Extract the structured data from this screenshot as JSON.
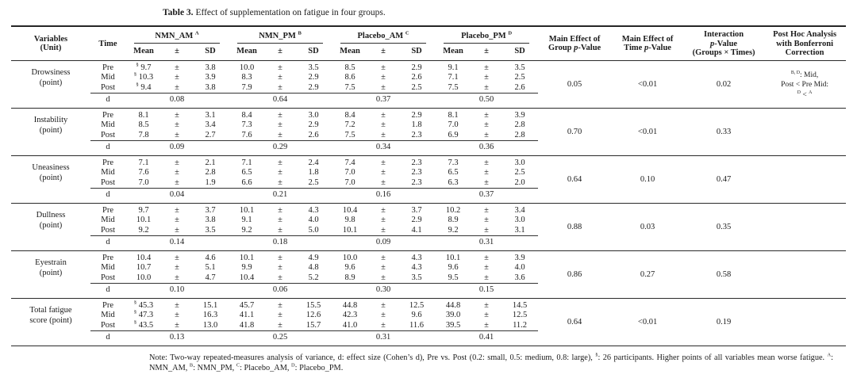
{
  "caption": {
    "label": "Table 3.",
    "text": " Effect of supplementation on fatigue in four groups."
  },
  "plus_minus": "±",
  "table": {
    "headers": {
      "variables": "Variables\n(Unit)",
      "time": "Time",
      "groups": [
        "NMN_AM ^A^",
        "NMN_PM ^B^",
        "Placebo_AM ^C^",
        "Placebo_PM ^D^"
      ],
      "sub": [
        "Mean",
        "±",
        "SD"
      ],
      "stats": [
        "Main Effect of\nGroup *p*-Value",
        "Main Effect of\nTime *p*-Value",
        "Interaction\n*p*-Value\n(Groups × Times)",
        "Post Hoc Analysis\nwith Bonferroni\nCorrection"
      ]
    },
    "d_label": "d",
    "blocks": [
      {
        "variable": "Drowsiness\n(point)",
        "rows": [
          {
            "time": "Pre",
            "values": [
              [
                "^§^ 9.7",
                "3.8"
              ],
              [
                "10.0",
                "3.5"
              ],
              [
                "8.5",
                "2.9"
              ],
              [
                "9.1",
                "3.5"
              ]
            ]
          },
          {
            "time": "Mid",
            "values": [
              [
                "^§^ 10.3",
                "3.9"
              ],
              [
                "8.3",
                "2.9"
              ],
              [
                "8.6",
                "2.6"
              ],
              [
                "7.1",
                "2.5"
              ]
            ]
          },
          {
            "time": "Post",
            "values": [
              [
                "^§^ 9.4",
                "3.8"
              ],
              [
                "7.9",
                "2.9"
              ],
              [
                "7.5",
                "2.5"
              ],
              [
                "7.5",
                "2.6"
              ]
            ]
          }
        ],
        "d": [
          "0.08",
          "0.64",
          "0.37",
          "0.50"
        ],
        "p": [
          "0.05",
          "<0.01",
          "0.02"
        ],
        "post_hoc": "^B, D^: Mid,\nPost < Pre Mid:\n^D^ < ^A^"
      },
      {
        "variable": "Instability\n(point)",
        "rows": [
          {
            "time": "Pre",
            "values": [
              [
                "8.1",
                "3.1"
              ],
              [
                "8.4",
                "3.0"
              ],
              [
                "8.4",
                "2.9"
              ],
              [
                "8.1",
                "3.9"
              ]
            ]
          },
          {
            "time": "Mid",
            "values": [
              [
                "8.5",
                "3.4"
              ],
              [
                "7.3",
                "2.9"
              ],
              [
                "7.2",
                "1.8"
              ],
              [
                "7.0",
                "2.8"
              ]
            ]
          },
          {
            "time": "Post",
            "values": [
              [
                "7.8",
                "2.7"
              ],
              [
                "7.6",
                "2.6"
              ],
              [
                "7.5",
                "2.3"
              ],
              [
                "6.9",
                "2.8"
              ]
            ]
          }
        ],
        "d": [
          "0.09",
          "0.29",
          "0.34",
          "0.36"
        ],
        "p": [
          "0.70",
          "<0.01",
          "0.33"
        ],
        "post_hoc": ""
      },
      {
        "variable": "Uneasiness\n(point)",
        "rows": [
          {
            "time": "Pre",
            "values": [
              [
                "7.1",
                "2.1"
              ],
              [
                "7.1",
                "2.4"
              ],
              [
                "7.4",
                "2.3"
              ],
              [
                "7.3",
                "3.0"
              ]
            ]
          },
          {
            "time": "Mid",
            "values": [
              [
                "7.6",
                "2.8"
              ],
              [
                "6.5",
                "1.8"
              ],
              [
                "7.0",
                "2.3"
              ],
              [
                "6.5",
                "2.5"
              ]
            ]
          },
          {
            "time": "Post",
            "values": [
              [
                "7.0",
                "1.9"
              ],
              [
                "6.6",
                "2.5"
              ],
              [
                "7.0",
                "2.3"
              ],
              [
                "6.3",
                "2.0"
              ]
            ]
          }
        ],
        "d": [
          "0.04",
          "0.21",
          "0.16",
          "0.37"
        ],
        "p": [
          "0.64",
          "0.10",
          "0.47"
        ],
        "post_hoc": ""
      },
      {
        "variable": "Dullness\n(point)",
        "rows": [
          {
            "time": "Pre",
            "values": [
              [
                "9.7",
                "3.7"
              ],
              [
                "10.1",
                "4.3"
              ],
              [
                "10.4",
                "3.7"
              ],
              [
                "10.2",
                "3.4"
              ]
            ]
          },
          {
            "time": "Mid",
            "values": [
              [
                "10.1",
                "3.8"
              ],
              [
                "9.1",
                "4.0"
              ],
              [
                "9.8",
                "2.9"
              ],
              [
                "8.9",
                "3.0"
              ]
            ]
          },
          {
            "time": "Post",
            "values": [
              [
                "9.2",
                "3.5"
              ],
              [
                "9.2",
                "5.0"
              ],
              [
                "10.1",
                "4.1"
              ],
              [
                "9.2",
                "3.1"
              ]
            ]
          }
        ],
        "d": [
          "0.14",
          "0.18",
          "0.09",
          "0.31"
        ],
        "p": [
          "0.88",
          "0.03",
          "0.35"
        ],
        "post_hoc": ""
      },
      {
        "variable": "Eyestrain\n(point)",
        "rows": [
          {
            "time": "Pre",
            "values": [
              [
                "10.4",
                "4.6"
              ],
              [
                "10.1",
                "4.9"
              ],
              [
                "10.0",
                "4.3"
              ],
              [
                "10.1",
                "3.9"
              ]
            ]
          },
          {
            "time": "Mid",
            "values": [
              [
                "10.7",
                "5.1"
              ],
              [
                "9.9",
                "4.8"
              ],
              [
                "9.6",
                "4.3"
              ],
              [
                "9.6",
                "4.0"
              ]
            ]
          },
          {
            "time": "Post",
            "values": [
              [
                "10.0",
                "4.7"
              ],
              [
                "10.4",
                "5.2"
              ],
              [
                "8.9",
                "3.5"
              ],
              [
                "9.5",
                "3.6"
              ]
            ]
          }
        ],
        "d": [
          "0.10",
          "0.06",
          "0.30",
          "0.15"
        ],
        "p": [
          "0.86",
          "0.27",
          "0.58"
        ],
        "post_hoc": ""
      },
      {
        "variable": "Total fatigue\nscore (point)",
        "rows": [
          {
            "time": "Pre",
            "values": [
              [
                "^§^ 45.3",
                "15.1"
              ],
              [
                "45.7",
                "15.5"
              ],
              [
                "44.8",
                "12.5"
              ],
              [
                "44.8",
                "14.5"
              ]
            ]
          },
          {
            "time": "Mid",
            "values": [
              [
                "^§^ 47.3",
                "16.3"
              ],
              [
                "41.1",
                "12.6"
              ],
              [
                "42.3",
                "9.6"
              ],
              [
                "39.0",
                "12.5"
              ]
            ]
          },
          {
            "time": "Post",
            "values": [
              [
                "^§^ 43.5",
                "13.0"
              ],
              [
                "41.8",
                "15.7"
              ],
              [
                "41.0",
                "11.6"
              ],
              [
                "39.5",
                "11.2"
              ]
            ]
          }
        ],
        "d": [
          "0.13",
          "0.25",
          "0.31",
          "0.41"
        ],
        "p": [
          "0.64",
          "<0.01",
          "0.19"
        ],
        "post_hoc": ""
      }
    ]
  },
  "note": {
    "text": "Note: Two-way repeated-measures analysis of variance, d: effect size (Cohen’s d), Pre vs. Post (0.2: small, 0.5: medium, 0.8: large), ^§^: 26 participants. Higher points of all variables mean worse fatigue. ^A^: NMN_AM, ^B^: NMN_PM, ^C^: Placebo_AM, ^D^: Placebo_PM."
  }
}
